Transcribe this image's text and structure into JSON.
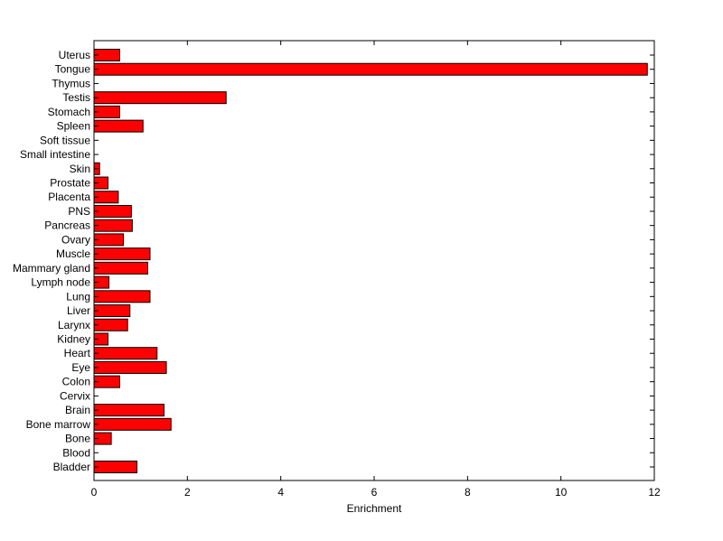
{
  "chart_data": {
    "type": "bar",
    "orientation": "horizontal",
    "categories": [
      "Bladder",
      "Blood",
      "Bone",
      "Bone marrow",
      "Brain",
      "Cervix",
      "Colon",
      "Eye",
      "Heart",
      "Kidney",
      "Larynx",
      "Liver",
      "Lung",
      "Lymph node",
      "Mammary gland",
      "Muscle",
      "Ovary",
      "Pancreas",
      "PNS",
      "Placenta",
      "Prostate",
      "Skin",
      "Small intestine",
      "Soft tissue",
      "Spleen",
      "Stomach",
      "Testis",
      "Thymus",
      "Tongue",
      "Uterus"
    ],
    "values": [
      0.92,
      0,
      0.37,
      1.65,
      1.5,
      0,
      0.55,
      1.55,
      1.35,
      0.3,
      0.72,
      0.77,
      1.2,
      0.32,
      1.15,
      1.2,
      0.63,
      0.82,
      0.8,
      0.52,
      0.3,
      0.12,
      0,
      0,
      1.05,
      0.55,
      2.83,
      0,
      11.85,
      0.55
    ],
    "title": "",
    "xlabel": "Enrichment",
    "ylabel": "",
    "xlim": [
      0,
      12
    ],
    "xticks": [
      0,
      2,
      4,
      6,
      8,
      10,
      12
    ],
    "bar_color": "#ff0000",
    "edge_color": "#000000",
    "grid": false,
    "legend": "none"
  }
}
